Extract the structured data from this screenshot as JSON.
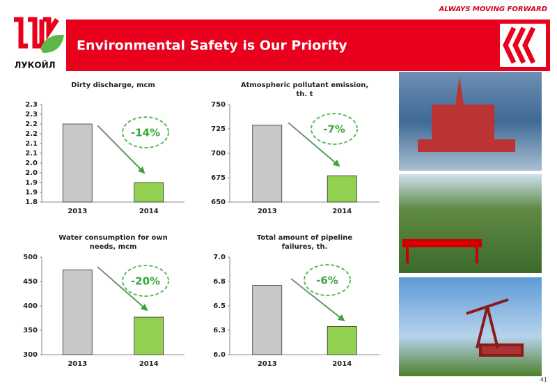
{
  "header": {
    "slogan": "ALWAYS MOVING FORWARD",
    "title": "Environmental Safety is Our Priority",
    "logo_text": "ЛУКОЙЛ"
  },
  "page_number": "41",
  "chart_data": [
    {
      "type": "bar",
      "title": "Dirty discharge, mcm",
      "categories": [
        "2013",
        "2014"
      ],
      "values": [
        2.2,
        1.9
      ],
      "colors": [
        "#c8c8c8",
        "#92d050"
      ],
      "ylim": [
        1.8,
        2.3
      ],
      "yticks": [
        1.8,
        {
          "value": 1.85,
          "label": "1.9"
        },
        1.9,
        {
          "value": 1.95,
          "label": "2.0"
        },
        {
          "value": 2.0,
          "label": "2.0"
        },
        {
          "value": 2.05,
          "label": "2.1"
        },
        2.1,
        {
          "value": 2.15,
          "label": "2.2"
        },
        2.2,
        {
          "value": 2.25,
          "label": "2.3"
        },
        2.3
      ],
      "annotation": "-14%"
    },
    {
      "type": "bar",
      "title": "Atmospheric pollutant emission, th. t",
      "categories": [
        "2013",
        "2014"
      ],
      "values": [
        729,
        677
      ],
      "colors": [
        "#c8c8c8",
        "#92d050"
      ],
      "ylim": [
        650,
        750
      ],
      "yticks": [
        650,
        675,
        700,
        725,
        750
      ],
      "annotation": "-7%"
    },
    {
      "type": "bar",
      "title": "Water consumption for own needs, mcm",
      "categories": [
        "2013",
        "2014"
      ],
      "values": [
        474,
        377
      ],
      "colors": [
        "#c8c8c8",
        "#92d050"
      ],
      "ylim": [
        300,
        500
      ],
      "yticks": [
        300,
        350,
        400,
        450,
        500
      ],
      "annotation": "-20%"
    },
    {
      "type": "bar",
      "title": "Total amount of pipeline failures, th.",
      "categories": [
        "2013",
        "2014"
      ],
      "values": [
        6.71,
        6.29
      ],
      "colors": [
        "#c8c8c8",
        "#92d050"
      ],
      "ylim": [
        6.0,
        7.0
      ],
      "yticks": [
        {
          "value": 6.0,
          "label": "6.0"
        },
        {
          "value": 6.25,
          "label": "6.3"
        },
        6.5,
        {
          "value": 6.75,
          "label": "6.8"
        },
        {
          "value": 7.0,
          "label": "7.0"
        }
      ],
      "annotation": "-6%"
    }
  ]
}
